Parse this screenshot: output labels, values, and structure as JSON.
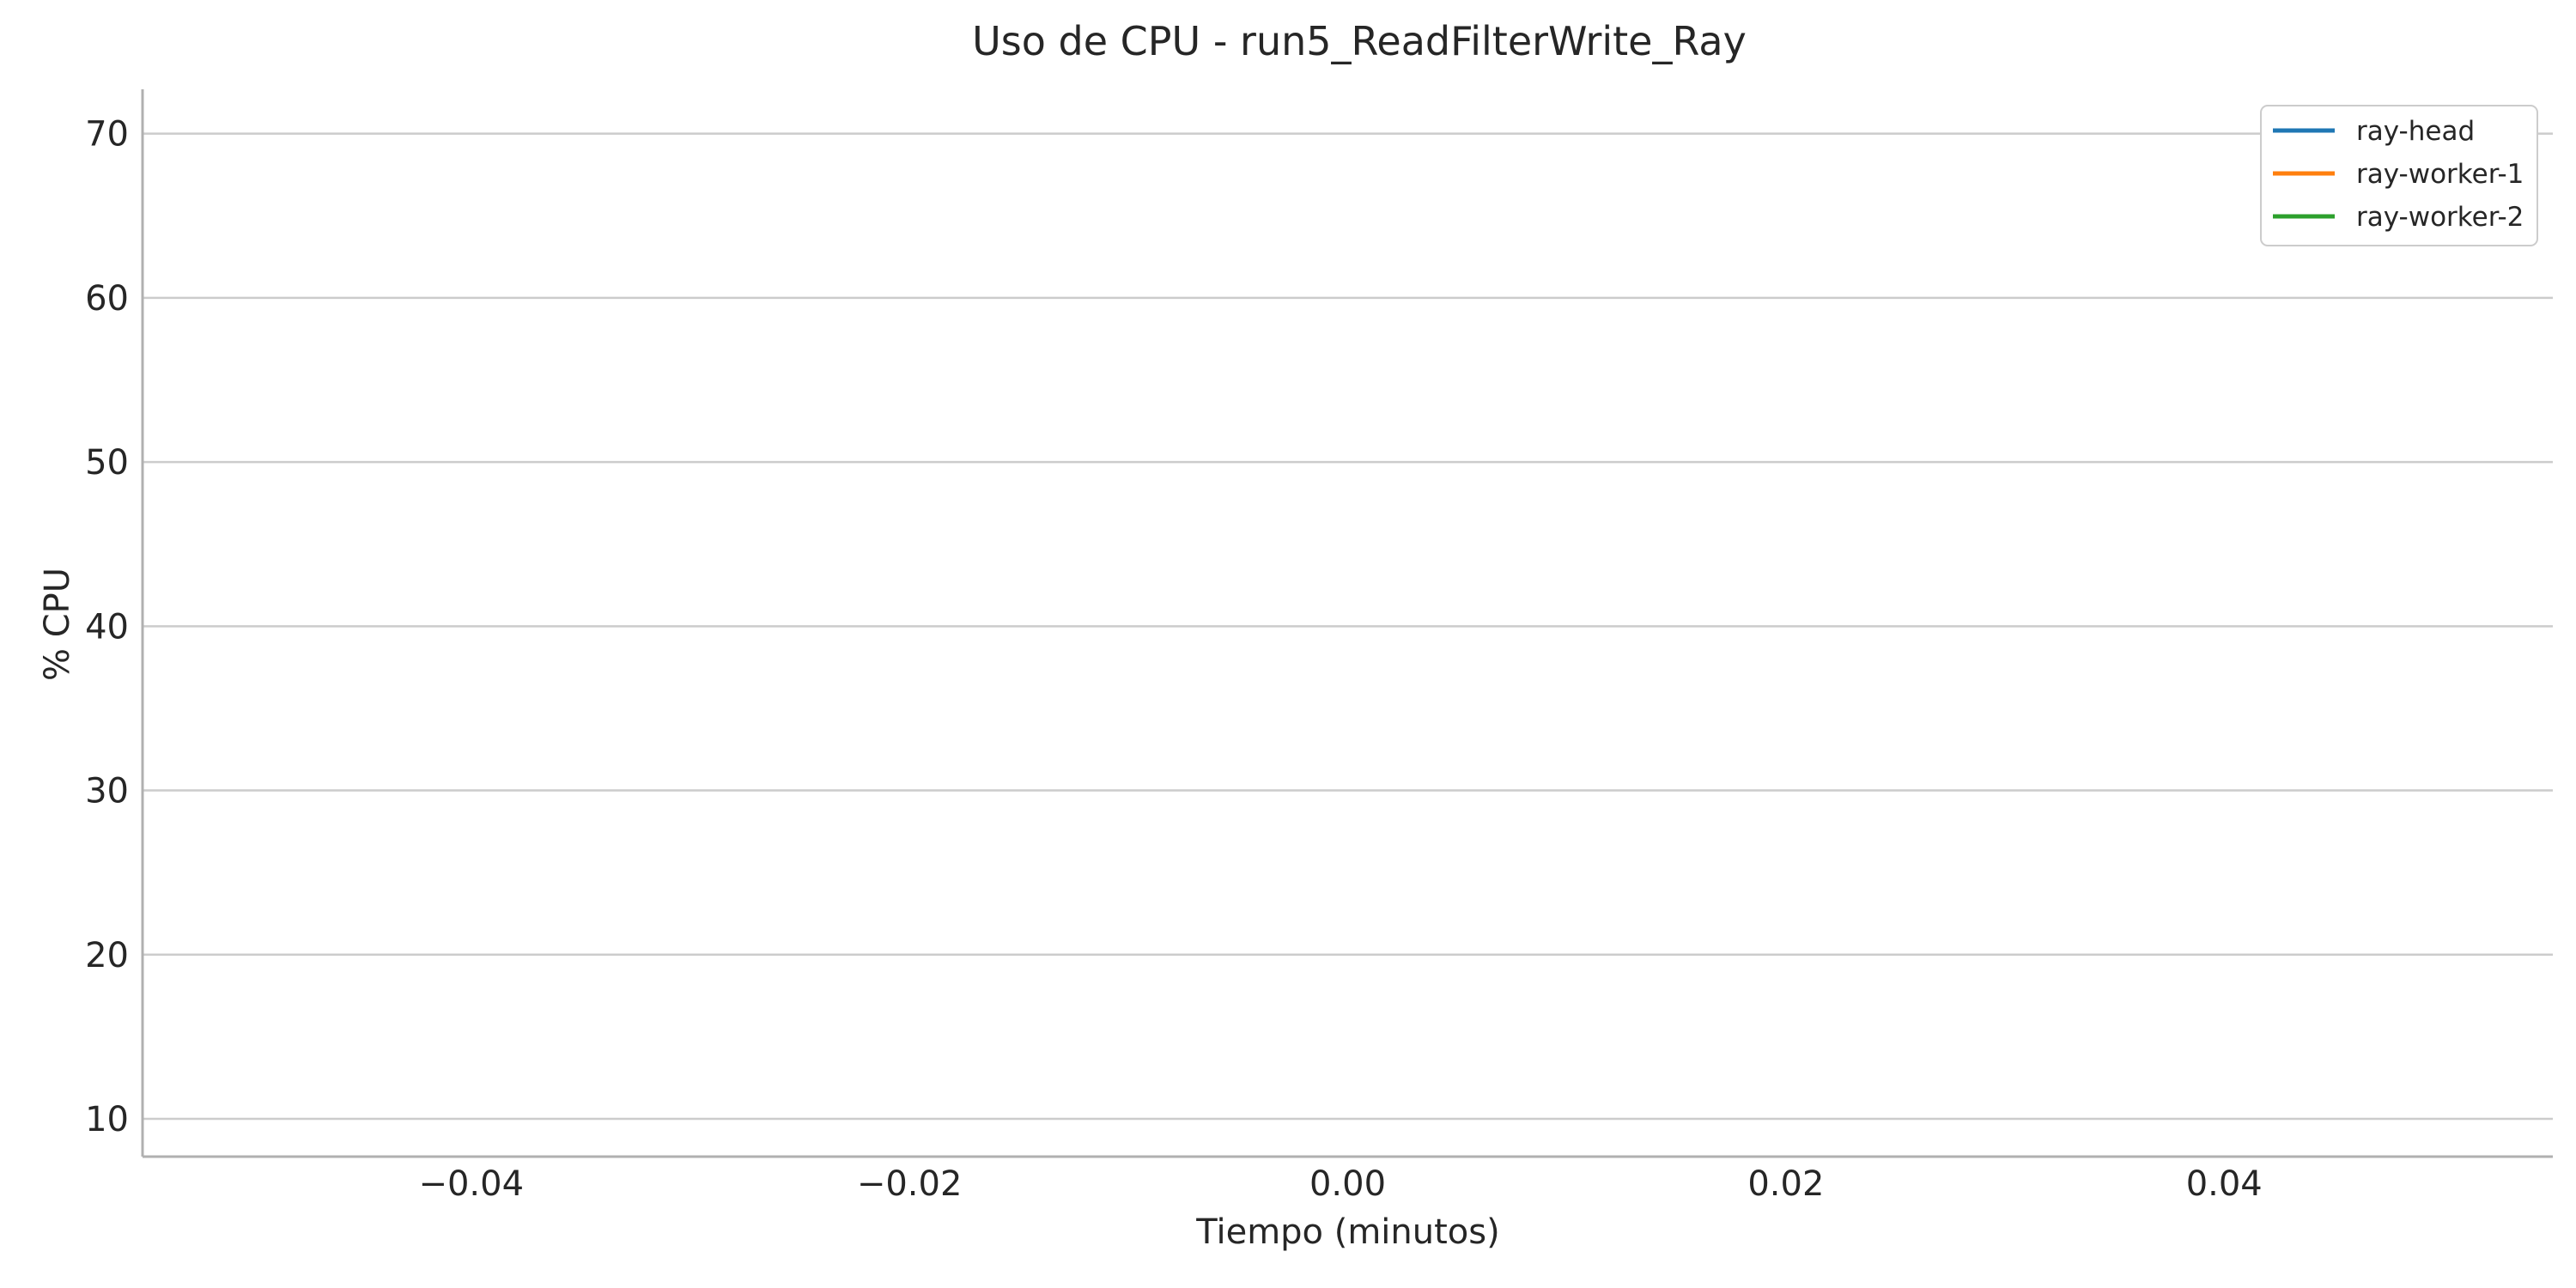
{
  "chart_data": {
    "type": "line",
    "title": "Uso de CPU - run5_ReadFilterWrite_Ray",
    "xlabel": "Tiempo (minutos)",
    "ylabel": "% CPU",
    "xlim": [
      -0.055,
      0.055
    ],
    "ylim": [
      7.7,
      72.7
    ],
    "x_ticks": [
      -0.04,
      -0.02,
      0.0,
      0.02,
      0.04
    ],
    "x_tick_labels": [
      "−0.04",
      "−0.02",
      "0.00",
      "0.02",
      "0.04"
    ],
    "y_ticks": [
      10,
      20,
      30,
      40,
      50,
      60,
      70
    ],
    "y_tick_labels": [
      "10",
      "20",
      "30",
      "40",
      "50",
      "60",
      "70"
    ],
    "grid": "horizontal",
    "legend_position": "top-right",
    "series": [
      {
        "name": "ray-head",
        "color": "#1f77b4",
        "x": [],
        "y": []
      },
      {
        "name": "ray-worker-1",
        "color": "#ff7f0e",
        "x": [],
        "y": []
      },
      {
        "name": "ray-worker-2",
        "color": "#2ca02c",
        "x": [],
        "y": []
      }
    ]
  }
}
